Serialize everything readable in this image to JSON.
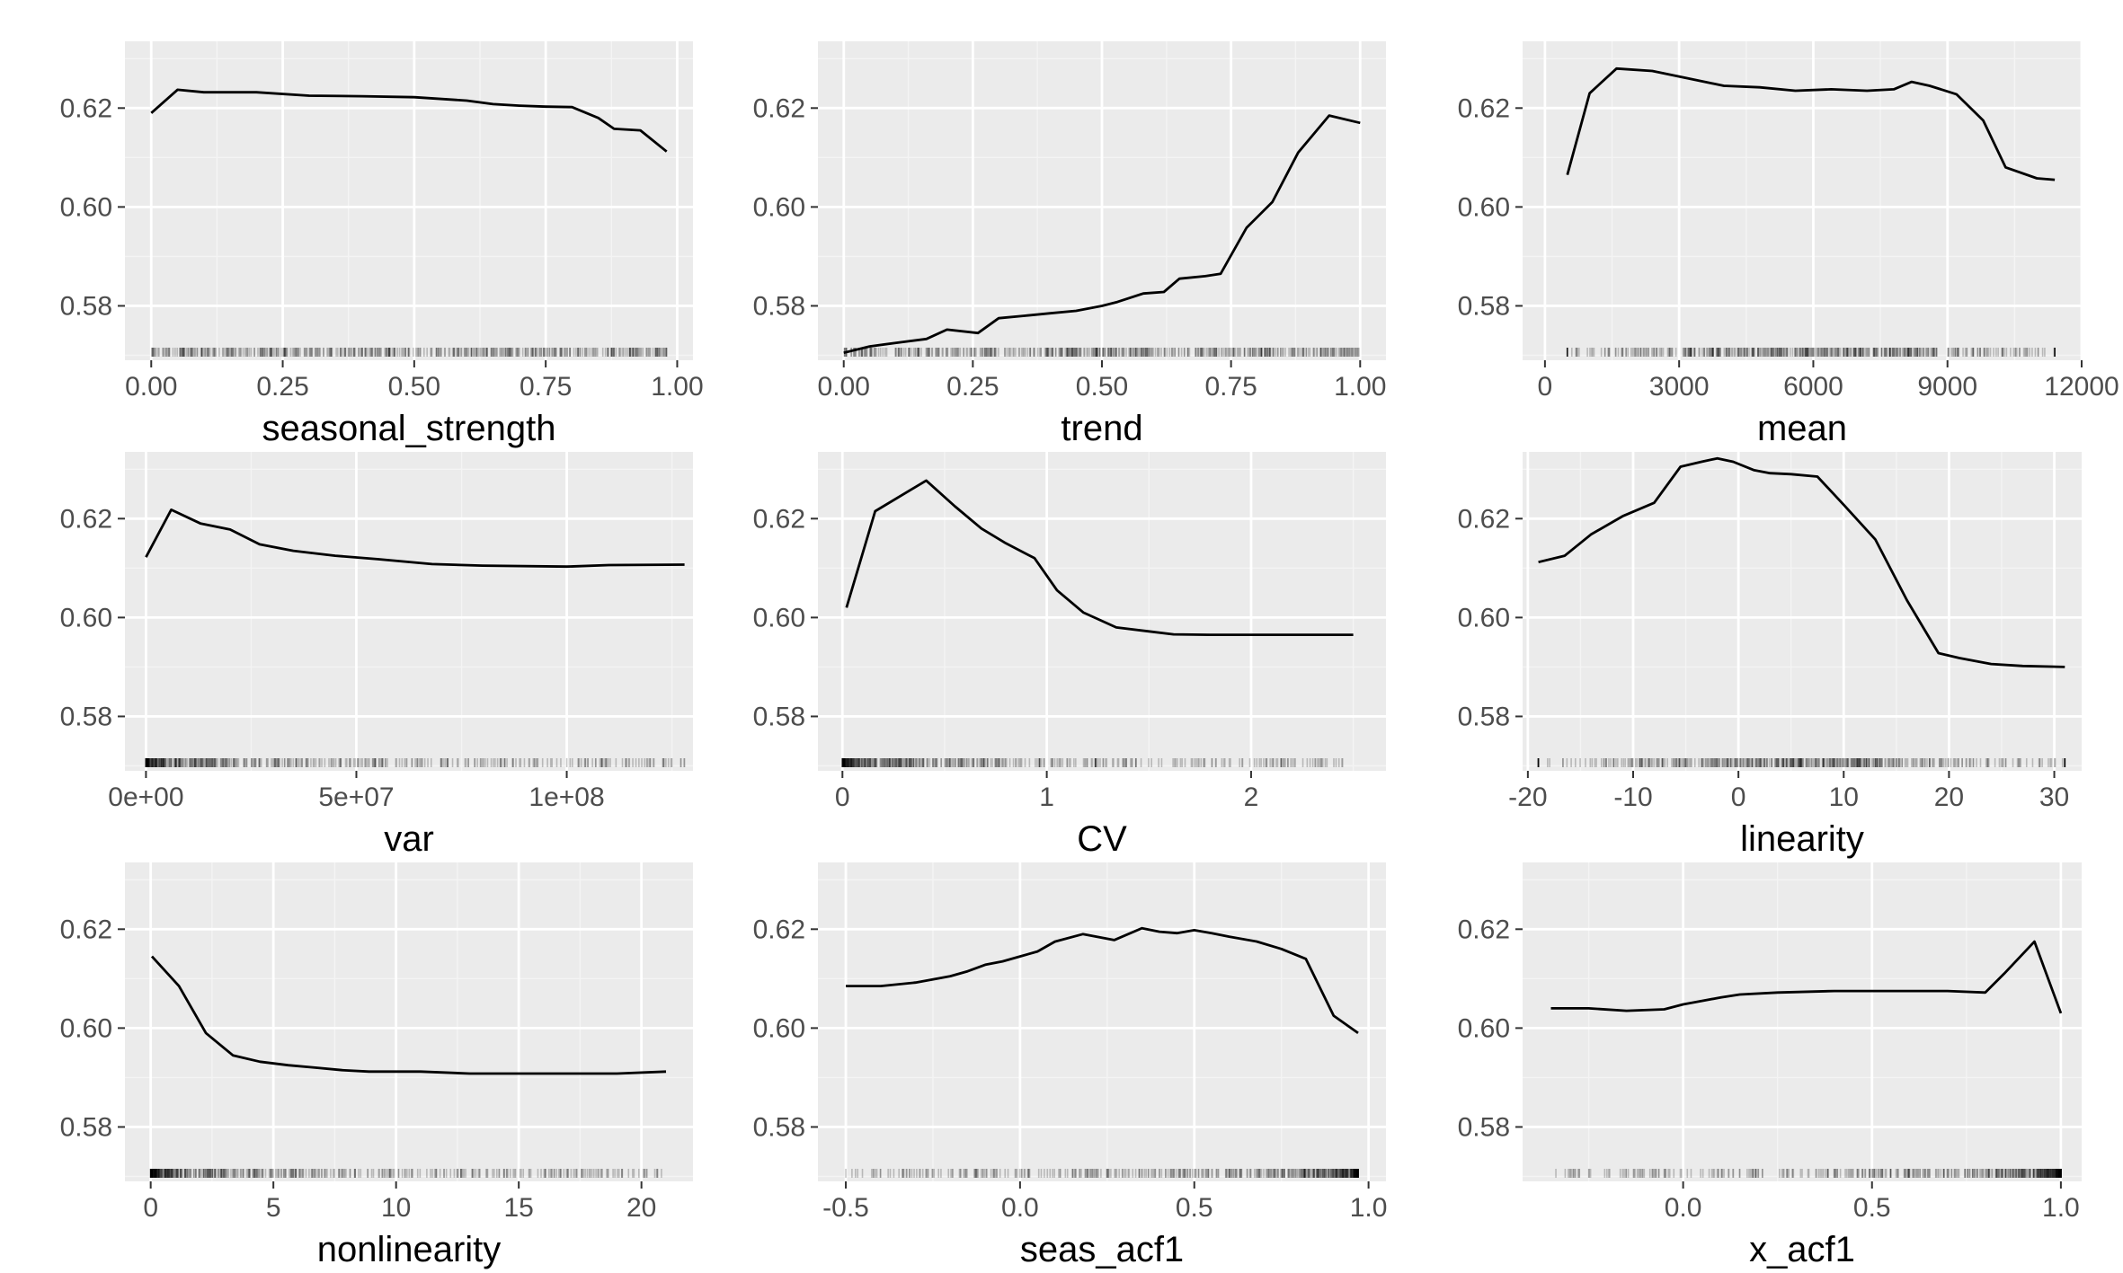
{
  "figure": {
    "colors": {
      "panel_bg": "#ebebeb",
      "grid_major": "#ffffff",
      "grid_minor": "#f4f4f4",
      "line": "#000000",
      "rug": "#000000",
      "tick_text": "#4d4d4d"
    }
  },
  "chart_data": [
    {
      "type": "line",
      "xlabel": "seasonal_strength",
      "xlim": [
        -0.05,
        1.03
      ],
      "ylim": [
        0.569,
        0.6335
      ],
      "xticks": [
        0,
        0.25,
        0.5,
        0.75,
        1
      ],
      "xtick_labels": [
        "0.00",
        "0.25",
        "0.50",
        "0.75",
        "1.00"
      ],
      "yticks": [
        0.58,
        0.6,
        0.62
      ],
      "ytick_labels": [
        "0.58",
        "0.60",
        "0.62"
      ],
      "x": [
        0.0,
        0.05,
        0.1,
        0.2,
        0.3,
        0.4,
        0.5,
        0.6,
        0.65,
        0.7,
        0.75,
        0.8,
        0.85,
        0.88,
        0.93,
        0.98
      ],
      "y": [
        0.619,
        0.6237,
        0.6232,
        0.6232,
        0.6225,
        0.6224,
        0.6222,
        0.6215,
        0.6208,
        0.6205,
        0.6203,
        0.6202,
        0.618,
        0.6158,
        0.6155,
        0.6112
      ],
      "rug": {
        "min": 0.0,
        "max": 0.98,
        "density": "uniform"
      }
    },
    {
      "type": "line",
      "xlabel": "trend",
      "xlim": [
        -0.05,
        1.05
      ],
      "ylim": [
        0.569,
        0.6335
      ],
      "xticks": [
        0,
        0.25,
        0.5,
        0.75,
        1
      ],
      "xtick_labels": [
        "0.00",
        "0.25",
        "0.50",
        "0.75",
        "1.00"
      ],
      "yticks": [
        0.58,
        0.6,
        0.62
      ],
      "ytick_labels": [
        "0.58",
        "0.60",
        "0.62"
      ],
      "x": [
        0.0,
        0.05,
        0.1,
        0.16,
        0.2,
        0.26,
        0.3,
        0.35,
        0.4,
        0.45,
        0.5,
        0.53,
        0.58,
        0.62,
        0.65,
        0.7,
        0.73,
        0.78,
        0.83,
        0.88,
        0.94,
        1.0
      ],
      "y": [
        0.5705,
        0.5718,
        0.5725,
        0.5733,
        0.5752,
        0.5745,
        0.5775,
        0.578,
        0.5785,
        0.579,
        0.58,
        0.5808,
        0.5825,
        0.5828,
        0.5855,
        0.586,
        0.5865,
        0.5958,
        0.601,
        0.611,
        0.6185,
        0.617
      ],
      "rug": {
        "min": 0.0,
        "max": 1.0,
        "density": "dense"
      }
    },
    {
      "type": "line",
      "xlabel": "mean",
      "xlim": [
        -500,
        12000
      ],
      "ylim": [
        0.569,
        0.6335
      ],
      "xticks": [
        0,
        3000,
        6000,
        9000,
        12000
      ],
      "xtick_labels": [
        "0",
        "3000",
        "6000",
        "9000",
        "12000"
      ],
      "yticks": [
        0.58,
        0.6,
        0.62
      ],
      "ytick_labels": [
        "0.58",
        "0.60",
        "0.62"
      ],
      "x": [
        500,
        1000,
        1600,
        2400,
        3200,
        4000,
        4800,
        5600,
        6400,
        7200,
        7800,
        8200,
        8600,
        9200,
        9800,
        10300,
        11000,
        11400
      ],
      "y": [
        0.6065,
        0.623,
        0.628,
        0.6275,
        0.626,
        0.6245,
        0.6242,
        0.6235,
        0.6238,
        0.6235,
        0.6238,
        0.6253,
        0.6245,
        0.6228,
        0.6175,
        0.608,
        0.6058,
        0.6055
      ],
      "rug": {
        "min": 500,
        "max": 11400,
        "density": "dense-center"
      }
    },
    {
      "type": "line",
      "xlabel": "var",
      "xlim": [
        -5000000,
        130000000
      ],
      "ylim": [
        0.569,
        0.6335
      ],
      "xticks": [
        0,
        50000000,
        100000000
      ],
      "xtick_labels": [
        "0e+00",
        "5e+07",
        "1e+08"
      ],
      "yticks": [
        0.58,
        0.6,
        0.62
      ],
      "ytick_labels": [
        "0.58",
        "0.60",
        "0.62"
      ],
      "x": [
        0,
        6000000,
        13000000,
        20000000,
        27000000,
        35000000,
        45000000,
        55000000,
        68000000,
        80000000,
        100000000,
        110000000,
        128000000
      ],
      "y": [
        0.6122,
        0.6218,
        0.619,
        0.6178,
        0.6148,
        0.6135,
        0.6125,
        0.6118,
        0.6108,
        0.6105,
        0.6103,
        0.6106,
        0.6107
      ],
      "rug": {
        "min": 0,
        "max": 128000000,
        "density": "skewed-low"
      }
    },
    {
      "type": "line",
      "xlabel": "CV",
      "xlim": [
        -0.12,
        2.66
      ],
      "ylim": [
        0.569,
        0.6335
      ],
      "xticks": [
        0,
        1,
        2
      ],
      "xtick_labels": [
        "0",
        "1",
        "2"
      ],
      "yticks": [
        0.58,
        0.6,
        0.62
      ],
      "ytick_labels": [
        "0.58",
        "0.60",
        "0.62"
      ],
      "x": [
        0.02,
        0.16,
        0.41,
        0.55,
        0.68,
        0.8,
        0.94,
        1.05,
        1.18,
        1.34,
        1.5,
        1.62,
        1.8,
        2.1,
        2.5
      ],
      "y": [
        0.602,
        0.6215,
        0.6277,
        0.6225,
        0.618,
        0.615,
        0.612,
        0.6055,
        0.601,
        0.598,
        0.5972,
        0.5966,
        0.5965,
        0.5965,
        0.5965
      ],
      "rug": {
        "min": 0.0,
        "max": 2.5,
        "density": "skewed-low"
      }
    },
    {
      "type": "line",
      "xlabel": "linearity",
      "xlim": [
        -20.5,
        32.6
      ],
      "ylim": [
        0.569,
        0.6335
      ],
      "xticks": [
        -20,
        -10,
        0,
        10,
        20,
        30
      ],
      "xtick_labels": [
        "-20",
        "-10",
        "0",
        "10",
        "20",
        "30"
      ],
      "yticks": [
        0.58,
        0.6,
        0.62
      ],
      "ytick_labels": [
        "0.58",
        "0.60",
        "0.62"
      ],
      "x": [
        -19,
        -16.5,
        -14,
        -11,
        -8,
        -5.5,
        -3.5,
        -2,
        -0.5,
        1.5,
        3,
        5,
        7.5,
        10,
        13,
        16,
        19,
        21,
        24,
        27,
        31
      ],
      "y": [
        0.6112,
        0.6125,
        0.6168,
        0.6205,
        0.6232,
        0.6305,
        0.6315,
        0.6322,
        0.6315,
        0.6298,
        0.6292,
        0.629,
        0.6285,
        0.6228,
        0.6158,
        0.6035,
        0.5928,
        0.5918,
        0.5906,
        0.5902,
        0.59
      ],
      "rug": {
        "min": -19,
        "max": 31,
        "density": "dense-center"
      }
    },
    {
      "type": "line",
      "xlabel": "nonlinearity",
      "xlim": [
        -1.05,
        22.1
      ],
      "ylim": [
        0.569,
        0.6335
      ],
      "xticks": [
        0,
        5,
        10,
        15,
        20
      ],
      "xtick_labels": [
        "0",
        "5",
        "10",
        "15",
        "20"
      ],
      "yticks": [
        0.58,
        0.6,
        0.62
      ],
      "ytick_labels": [
        "0.58",
        "0.60",
        "0.62"
      ],
      "x": [
        0.05,
        1.15,
        2.25,
        3.35,
        4.45,
        5.6,
        6.7,
        7.8,
        8.9,
        11,
        13,
        16,
        19,
        21
      ],
      "y": [
        0.6145,
        0.6085,
        0.599,
        0.5945,
        0.5932,
        0.5925,
        0.592,
        0.5915,
        0.5912,
        0.5912,
        0.5908,
        0.5908,
        0.5908,
        0.5912
      ],
      "rug": {
        "min": 0,
        "max": 21,
        "density": "skewed-low"
      }
    },
    {
      "type": "line",
      "xlabel": "seas_acf1",
      "xlim": [
        -0.58,
        1.05
      ],
      "ylim": [
        0.569,
        0.6335
      ],
      "xticks": [
        -0.5,
        0,
        0.5,
        1
      ],
      "xtick_labels": [
        "-0.5",
        "0.0",
        "0.5",
        "1.0"
      ],
      "yticks": [
        0.58,
        0.6,
        0.62
      ],
      "ytick_labels": [
        "0.58",
        "0.60",
        "0.62"
      ],
      "x": [
        -0.5,
        -0.4,
        -0.3,
        -0.2,
        -0.15,
        -0.1,
        -0.05,
        0.0,
        0.05,
        0.1,
        0.18,
        0.27,
        0.35,
        0.4,
        0.45,
        0.5,
        0.55,
        0.6,
        0.68,
        0.75,
        0.82,
        0.9,
        0.97
      ],
      "y": [
        0.6085,
        0.6085,
        0.6092,
        0.6105,
        0.6115,
        0.6128,
        0.6135,
        0.6145,
        0.6155,
        0.6175,
        0.619,
        0.6178,
        0.6202,
        0.6195,
        0.6192,
        0.6198,
        0.6192,
        0.6185,
        0.6175,
        0.616,
        0.614,
        0.6025,
        0.599
      ],
      "rug": {
        "min": -0.5,
        "max": 0.97,
        "density": "skewed-high"
      }
    },
    {
      "type": "line",
      "xlabel": "x_acf1",
      "xlim": [
        -0.425,
        1.055
      ],
      "ylim": [
        0.569,
        0.6335
      ],
      "xticks": [
        0,
        0.5,
        1
      ],
      "xtick_labels": [
        "0.0",
        "0.5",
        "1.0"
      ],
      "yticks": [
        0.58,
        0.6,
        0.62
      ],
      "ytick_labels": [
        "0.58",
        "0.60",
        "0.62"
      ],
      "x": [
        -0.35,
        -0.25,
        -0.15,
        -0.05,
        0.0,
        0.05,
        0.1,
        0.15,
        0.25,
        0.4,
        0.6,
        0.7,
        0.8,
        0.85,
        0.93,
        1.0
      ],
      "y": [
        0.604,
        0.604,
        0.6035,
        0.6038,
        0.6048,
        0.6055,
        0.6062,
        0.6068,
        0.6072,
        0.6075,
        0.6075,
        0.6075,
        0.6072,
        0.611,
        0.6175,
        0.603
      ],
      "rug": {
        "min": -0.35,
        "max": 1.0,
        "density": "skewed-high"
      }
    }
  ]
}
